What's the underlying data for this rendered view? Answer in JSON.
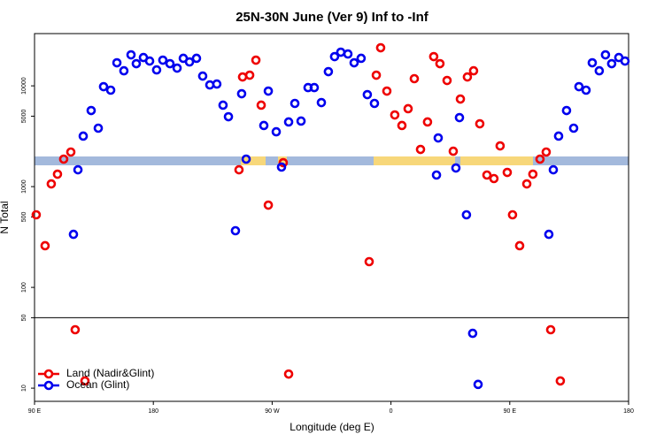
{
  "chart_data": {
    "type": "scatter",
    "title": "25N-30N June (Ver 9)   Inf to -Inf",
    "x_label": "Longitude (deg E)",
    "y_label": "N Total",
    "xlim": [
      90,
      540
    ],
    "ylim": [
      7.4,
      33000
    ],
    "log_y": true,
    "divider": 50,
    "legend": "lower left",
    "xticks": [
      {
        "value": 90,
        "label": "90 E"
      },
      {
        "value": 180,
        "label": "180"
      },
      {
        "value": 270,
        "label": "90 W"
      },
      {
        "value": 360,
        "label": "0"
      },
      {
        "value": 450,
        "label": "90 E"
      },
      {
        "value": 540,
        "label": "180"
      }
    ],
    "yticks": [
      10,
      50,
      100,
      500,
      1000,
      5000,
      10000
    ],
    "series": [
      {
        "name": "Land (Nadir&Glint)",
        "color": "#ee0000",
        "x": [
          91.3,
          98.0,
          102.7,
          107.4,
          112.1,
          117.5,
          120.8,
          128.2,
          244.9,
          247.6,
          253.0,
          257.7,
          261.7,
          267.1,
          278.4,
          282.5,
          343.5,
          348.9,
          352.2,
          356.9,
          362.9,
          368.3,
          373.0,
          377.7,
          382.4,
          387.7,
          392.4,
          397.1,
          402.5,
          407.2,
          412.6,
          417.9,
          422.6,
          427.3,
          432.7,
          438.0,
          442.7,
          448.1,
          452.1,
          457.5,
          462.9,
          467.5,
          472.9,
          477.6,
          481.0,
          488.3
        ],
        "values": [
          525,
          259,
          1064,
          1328,
          1874,
          2203,
          38,
          11.8,
          1469,
          12250,
          12760,
          17990,
          6430,
          655,
          1727,
          13.8,
          180,
          12760,
          23880,
          8870,
          5140,
          4040,
          5930,
          11780,
          2340,
          4380,
          19500,
          16600,
          11300,
          2245,
          7400,
          12250,
          14100,
          4200,
          1303,
          1202,
          2535,
          1383,
          525,
          259,
          1064,
          1328,
          1874,
          2203,
          38,
          11.8
        ]
      },
      {
        "name": "Ocean (Glint)",
        "color": "#0000ee",
        "x": [
          119.5,
          122.9,
          126.9,
          132.9,
          138.3,
          142.3,
          147.7,
          152.4,
          157.7,
          163.1,
          167.1,
          172.5,
          177.2,
          182.5,
          187.2,
          192.6,
          198.0,
          202.7,
          207.4,
          212.7,
          217.4,
          222.8,
          228.1,
          232.8,
          236.9,
          242.2,
          246.9,
          250.3,
          263.7,
          267.1,
          273.1,
          277.1,
          282.5,
          287.2,
          291.9,
          297.2,
          301.9,
          307.3,
          312.6,
          317.3,
          322.0,
          327.4,
          332.1,
          337.4,
          342.1,
          347.5,
          394.5,
          395.8,
          409.2,
          411.9,
          417.2,
          421.9,
          426.0,
          479.6,
          483.0,
          487.0,
          493.0,
          498.4,
          502.4,
          507.8,
          512.5,
          517.8,
          522.5,
          527.2,
          532.6,
          537.3
        ],
        "values": [
          336,
          1469,
          3170,
          5690,
          3800,
          9810,
          9060,
          16940,
          14100,
          20300,
          16600,
          19100,
          17620,
          14390,
          17990,
          16600,
          15000,
          18750,
          17260,
          18750,
          12500,
          10210,
          10420,
          6430,
          4940,
          365,
          8350,
          1874,
          4040,
          8870,
          3500,
          1563,
          4380,
          6690,
          4470,
          9610,
          9610,
          6820,
          13840,
          19500,
          21580,
          20700,
          16940,
          18750,
          8180,
          6690,
          1303,
          3040,
          1530,
          4840,
          525,
          35,
          10.9,
          336,
          1469,
          3170,
          5690,
          3800,
          9810,
          9060,
          16940,
          14100,
          20300,
          16600,
          19100,
          17620
        ]
      }
    ]
  }
}
